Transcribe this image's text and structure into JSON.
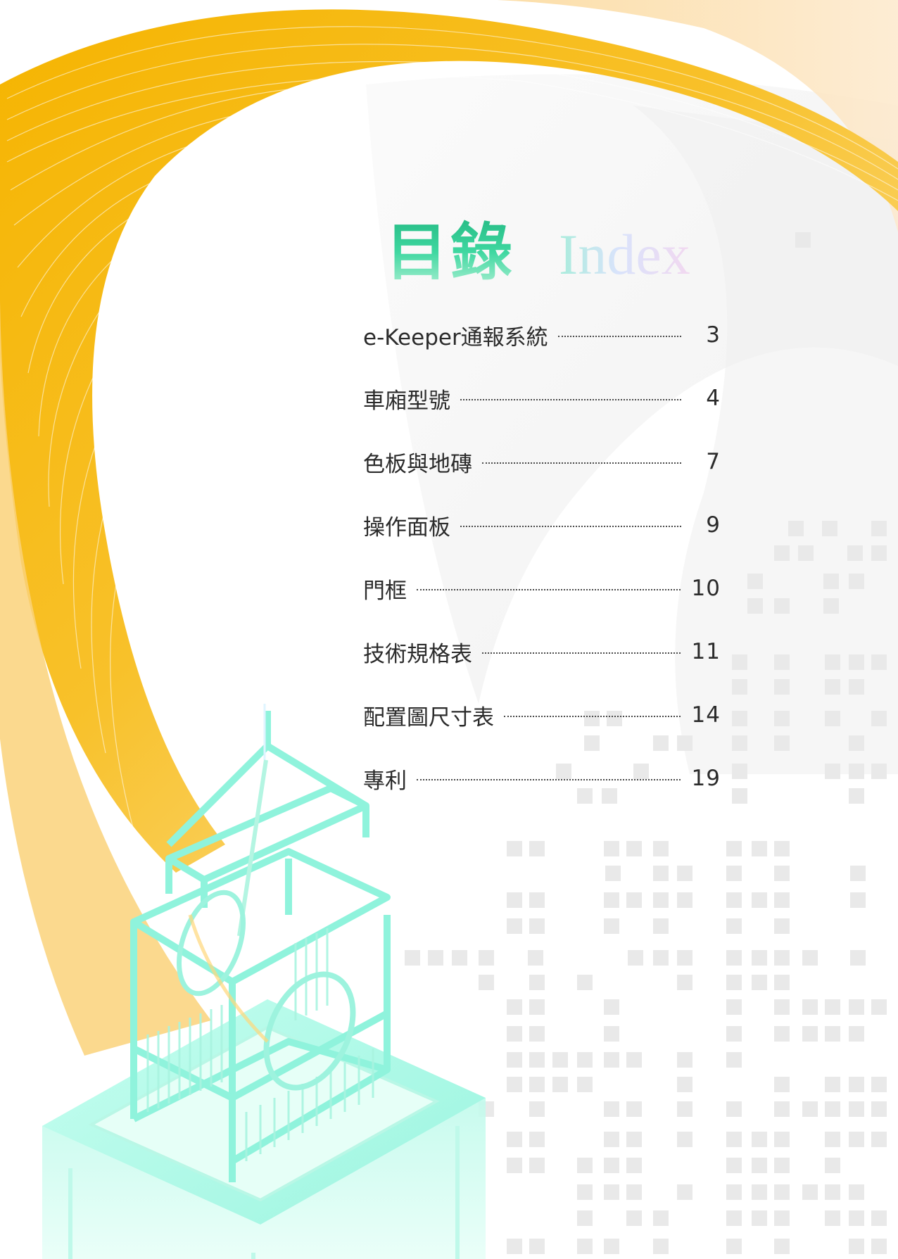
{
  "title": {
    "zh": "目錄",
    "en": "Index"
  },
  "toc": [
    {
      "label": "e-Keeper通報系統",
      "page": "3"
    },
    {
      "label": "車廂型號",
      "page": "4"
    },
    {
      "label": "色板與地磚",
      "page": "7"
    },
    {
      "label": "操作面板",
      "page": "9"
    },
    {
      "label": "門框",
      "page": "10"
    },
    {
      "label": "技術規格表",
      "page": "11"
    },
    {
      "label": "配置圖尺寸表",
      "page": "14"
    },
    {
      "label": "專利",
      "page": "19"
    }
  ],
  "colors": {
    "swirl_gold": "#f5b800",
    "swirl_light": "#fde8b8",
    "title_green": "#2fc98c",
    "elevator_mint": "#8ff3dc",
    "text": "#2b2b2b"
  }
}
